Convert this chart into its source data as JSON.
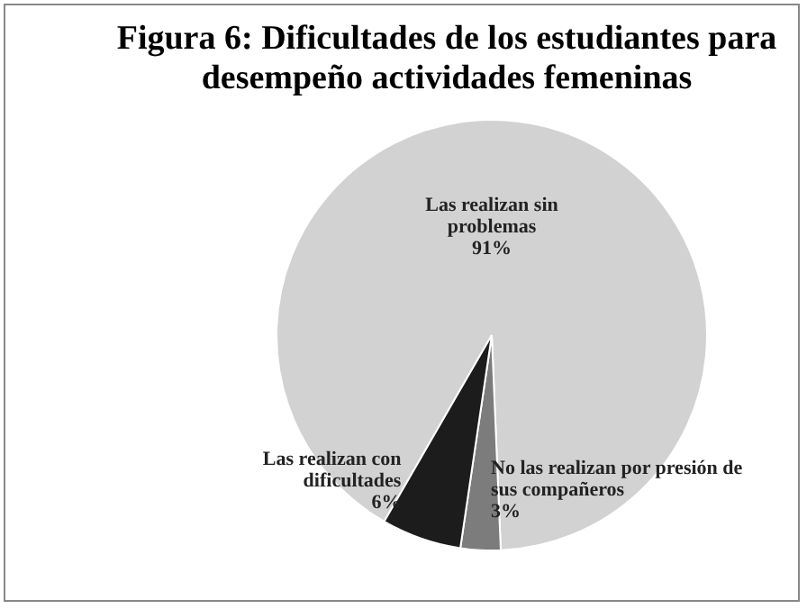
{
  "chart_data": {
    "type": "pie",
    "title": "Figura 6: Dificultades de los estudiantes para desempeño actividades femeninas",
    "categories": [
      "Las realizan sin problemas",
      "No las realizan por presión de sus compañeros",
      "Las realizan con dificultades"
    ],
    "values": [
      91,
      3,
      6
    ],
    "colors": [
      "#d2d2d2",
      "#7c7c7c",
      "#1c1c1c"
    ],
    "value_labels": [
      "91%",
      "3%",
      "6%"
    ],
    "legend": false
  }
}
